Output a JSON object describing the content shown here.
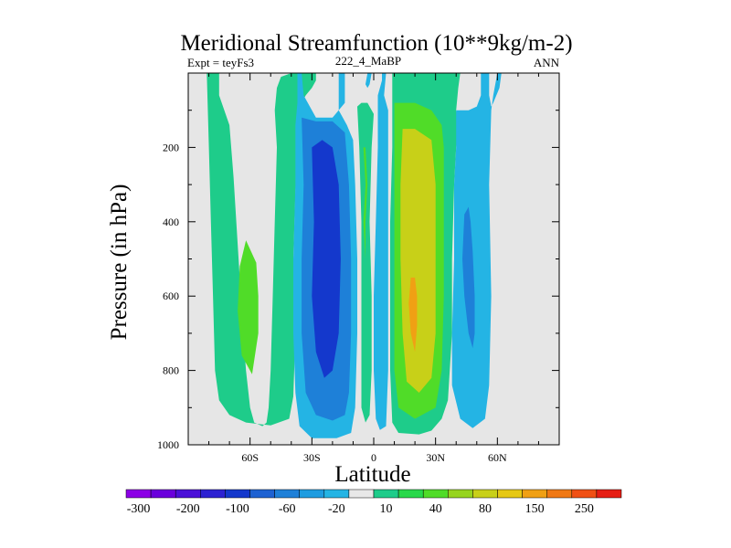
{
  "chart_data": {
    "type": "heatmap",
    "title": "Meridional Streamfunction (10**9kg/m-2)",
    "left_label": "Expt = teyFs3",
    "center_label": "222_4_MaBP",
    "right_label": "ANN",
    "xlabel": "Latitude",
    "ylabel": "Pressure (in hPa)",
    "xlim": [
      -90,
      90
    ],
    "ylim": [
      1000,
      0
    ],
    "xticks": [
      {
        "value": -60,
        "label": "60S"
      },
      {
        "value": -30,
        "label": "30S"
      },
      {
        "value": 0,
        "label": "0"
      },
      {
        "value": 30,
        "label": "30N"
      },
      {
        "value": 60,
        "label": "60N"
      }
    ],
    "yticks": [
      {
        "value": 200,
        "label": "200"
      },
      {
        "value": 400,
        "label": "400"
      },
      {
        "value": 600,
        "label": "600"
      },
      {
        "value": 800,
        "label": "800"
      },
      {
        "value": 1000,
        "label": "1000"
      }
    ],
    "background_color": "#e6e6e6",
    "colorbar": {
      "levels": [
        -300,
        -250,
        -200,
        -150,
        -100,
        -80,
        -60,
        -40,
        -20,
        -10,
        10,
        20,
        40,
        60,
        80,
        100,
        150,
        200,
        250,
        300
      ],
      "labels": [
        "-300",
        "-200",
        "-100",
        "-60",
        "-20",
        "10",
        "40",
        "80",
        "150",
        "250"
      ],
      "label_levels": [
        -300,
        -200,
        -100,
        -60,
        -20,
        10,
        40,
        80,
        150,
        250
      ],
      "colors": [
        "#8c00e6",
        "#6a00dc",
        "#4b10d8",
        "#2d22d2",
        "#1438cc",
        "#1e62d2",
        "#1e80d8",
        "#1e9ce0",
        "#24b4e4",
        "#e8e8e8",
        "#1ecc8a",
        "#28d84a",
        "#50dc28",
        "#96d41e",
        "#c8d018",
        "#e6c814",
        "#f0a014",
        "#f07814",
        "#f05014",
        "#e61e14"
      ]
    },
    "regions": [
      {
        "level_color": 10,
        "points": [
          [
            -81,
            0
          ],
          [
            -75,
            0
          ],
          [
            -75,
            60
          ],
          [
            -70,
            140
          ],
          [
            -68,
            280
          ],
          [
            -66,
            460
          ],
          [
            -64,
            640
          ],
          [
            -62,
            800
          ],
          [
            -60,
            900
          ],
          [
            -58,
            940
          ],
          [
            -54,
            950
          ],
          [
            -52,
            940
          ],
          [
            -51,
            900
          ],
          [
            -50,
            800
          ],
          [
            -49,
            600
          ],
          [
            -48,
            400
          ],
          [
            -47,
            200
          ],
          [
            -48,
            100
          ],
          [
            -47,
            40
          ],
          [
            -45,
            10
          ],
          [
            -40,
            0
          ],
          [
            -28,
            0
          ],
          [
            -28,
            20
          ],
          [
            -30,
            40
          ],
          [
            -33,
            60
          ],
          [
            -35,
            80
          ],
          [
            -36,
            140
          ],
          [
            -37,
            200
          ],
          [
            -38,
            320
          ],
          [
            -39,
            500
          ],
          [
            -38,
            700
          ],
          [
            -39,
            870
          ],
          [
            -41,
            930
          ],
          [
            -50,
            948
          ],
          [
            -62,
            940
          ],
          [
            -70,
            920
          ],
          [
            -75,
            880
          ],
          [
            -77,
            800
          ],
          [
            -78,
            600
          ],
          [
            -79,
            400
          ],
          [
            -80,
            200
          ]
        ]
      },
      {
        "level_color": 40,
        "points": [
          [
            -62,
            450
          ],
          [
            -57,
            510
          ],
          [
            -56,
            600
          ],
          [
            -56,
            700
          ],
          [
            -59,
            810
          ],
          [
            -64,
            760
          ],
          [
            -66,
            640
          ],
          [
            -65,
            520
          ]
        ]
      },
      {
        "level_color": -20,
        "points": [
          [
            -37,
            0
          ],
          [
            -37,
            80
          ],
          [
            -38,
            140
          ],
          [
            -38,
            300
          ],
          [
            -39,
            500
          ],
          [
            -39,
            700
          ],
          [
            -38,
            860
          ],
          [
            -36,
            950
          ],
          [
            -30,
            982
          ],
          [
            -18,
            982
          ],
          [
            -11,
            968
          ],
          [
            -9,
            900
          ],
          [
            -8,
            700
          ],
          [
            -8,
            500
          ],
          [
            -9,
            300
          ],
          [
            -10,
            180
          ],
          [
            -13,
            140
          ],
          [
            -17,
            100
          ],
          [
            -17,
            0
          ],
          [
            -14,
            0
          ],
          [
            -14,
            80
          ],
          [
            -20,
            120
          ],
          [
            -28,
            120
          ],
          [
            -34,
            60
          ],
          [
            -35,
            0
          ]
        ]
      },
      {
        "level_color": -60,
        "points": [
          [
            -35,
            120
          ],
          [
            -34,
            300
          ],
          [
            -35,
            500
          ],
          [
            -35,
            700
          ],
          [
            -33,
            860
          ],
          [
            -28,
            920
          ],
          [
            -20,
            935
          ],
          [
            -14,
            920
          ],
          [
            -12,
            860
          ],
          [
            -11,
            700
          ],
          [
            -11,
            500
          ],
          [
            -12,
            300
          ],
          [
            -14,
            160
          ],
          [
            -20,
            130
          ],
          [
            -28,
            130
          ]
        ]
      },
      {
        "level_color": -100,
        "points": [
          [
            -30,
            200
          ],
          [
            -29,
            400
          ],
          [
            -30,
            600
          ],
          [
            -28,
            750
          ],
          [
            -24,
            820
          ],
          [
            -20,
            800
          ],
          [
            -17,
            700
          ],
          [
            -16,
            500
          ],
          [
            -17,
            300
          ],
          [
            -20,
            200
          ],
          [
            -25,
            180
          ]
        ]
      },
      {
        "level_color": 10,
        "points": [
          [
            -8,
            90
          ],
          [
            -7,
            200
          ],
          [
            -6,
            400
          ],
          [
            -6,
            600
          ],
          [
            -6,
            800
          ],
          [
            -6,
            900
          ],
          [
            -4,
            940
          ],
          [
            -2,
            920
          ],
          [
            -1,
            800
          ],
          [
            -1,
            600
          ],
          [
            -2,
            400
          ],
          [
            -1,
            200
          ],
          [
            0,
            110
          ],
          [
            -3,
            80
          ],
          [
            -6,
            80
          ]
        ]
      },
      {
        "level_color": 40,
        "points": [
          [
            -5,
            200
          ],
          [
            -4,
            300
          ],
          [
            -5,
            400
          ],
          [
            -4,
            500
          ],
          [
            -4,
            400
          ],
          [
            -3,
            300
          ],
          [
            -4,
            200
          ]
        ]
      },
      {
        "level_color": -20,
        "points": [
          [
            4,
            0
          ],
          [
            4,
            20
          ],
          [
            2,
            60
          ],
          [
            2,
            200
          ],
          [
            1,
            400
          ],
          [
            0,
            600
          ],
          [
            0,
            800
          ],
          [
            1,
            930
          ],
          [
            3,
            960
          ],
          [
            6,
            950
          ],
          [
            7,
            800
          ],
          [
            7,
            600
          ],
          [
            7,
            400
          ],
          [
            7,
            200
          ],
          [
            7,
            100
          ],
          [
            5,
            60
          ],
          [
            6,
            0
          ]
        ]
      },
      {
        "level_color": -20,
        "points": [
          [
            -3,
            0
          ],
          [
            -4,
            30
          ],
          [
            -3,
            40
          ],
          [
            -2,
            30
          ],
          [
            -1,
            0
          ]
        ]
      },
      {
        "level_color": 10,
        "points": [
          [
            9,
            0
          ],
          [
            9,
            200
          ],
          [
            8,
            400
          ],
          [
            8,
            600
          ],
          [
            8,
            800
          ],
          [
            9,
            940
          ],
          [
            12,
            968
          ],
          [
            22,
            972
          ],
          [
            28,
            962
          ],
          [
            33,
            930
          ],
          [
            36,
            880
          ],
          [
            38,
            700
          ],
          [
            38,
            500
          ],
          [
            39,
            300
          ],
          [
            40,
            200
          ],
          [
            41,
            150
          ],
          [
            40,
            100
          ],
          [
            41,
            40
          ],
          [
            42,
            0
          ]
        ]
      },
      {
        "level_color": 40,
        "points": [
          [
            10,
            80
          ],
          [
            10,
            200
          ],
          [
            10,
            400
          ],
          [
            10,
            600
          ],
          [
            10,
            800
          ],
          [
            12,
            900
          ],
          [
            20,
            930
          ],
          [
            30,
            900
          ],
          [
            33,
            800
          ],
          [
            34,
            600
          ],
          [
            34,
            400
          ],
          [
            34,
            200
          ],
          [
            33,
            140
          ],
          [
            28,
            100
          ],
          [
            20,
            80
          ]
        ]
      },
      {
        "level_color": 80,
        "points": [
          [
            14,
            150
          ],
          [
            13,
            300
          ],
          [
            13,
            500
          ],
          [
            14,
            700
          ],
          [
            16,
            830
          ],
          [
            22,
            860
          ],
          [
            28,
            820
          ],
          [
            30,
            700
          ],
          [
            30,
            500
          ],
          [
            30,
            300
          ],
          [
            28,
            180
          ],
          [
            20,
            150
          ]
        ]
      },
      {
        "level_color": 150,
        "points": [
          [
            18,
            550
          ],
          [
            17,
            620
          ],
          [
            18,
            700
          ],
          [
            20,
            750
          ],
          [
            21,
            680
          ],
          [
            21,
            600
          ],
          [
            20,
            550
          ]
        ]
      },
      {
        "level_color": -20,
        "points": [
          [
            40,
            100
          ],
          [
            40,
            200
          ],
          [
            39,
            300
          ],
          [
            39,
            500
          ],
          [
            38,
            700
          ],
          [
            38,
            840
          ],
          [
            42,
            930
          ],
          [
            48,
            955
          ],
          [
            54,
            930
          ],
          [
            56,
            840
          ],
          [
            57,
            600
          ],
          [
            56,
            300
          ],
          [
            57,
            100
          ],
          [
            58,
            60
          ],
          [
            60,
            0
          ],
          [
            62,
            0
          ],
          [
            61,
            40
          ],
          [
            58,
            80
          ],
          [
            57,
            90
          ],
          [
            56,
            60
          ],
          [
            56,
            0
          ],
          [
            52,
            0
          ],
          [
            52,
            60
          ],
          [
            50,
            90
          ],
          [
            46,
            100
          ]
        ]
      },
      {
        "level_color": -60,
        "points": [
          [
            44,
            380
          ],
          [
            43,
            500
          ],
          [
            44,
            600
          ],
          [
            46,
            700
          ],
          [
            48,
            740
          ],
          [
            49,
            700
          ],
          [
            49,
            600
          ],
          [
            48,
            480
          ],
          [
            47,
            400
          ],
          [
            46,
            360
          ]
        ]
      }
    ]
  }
}
